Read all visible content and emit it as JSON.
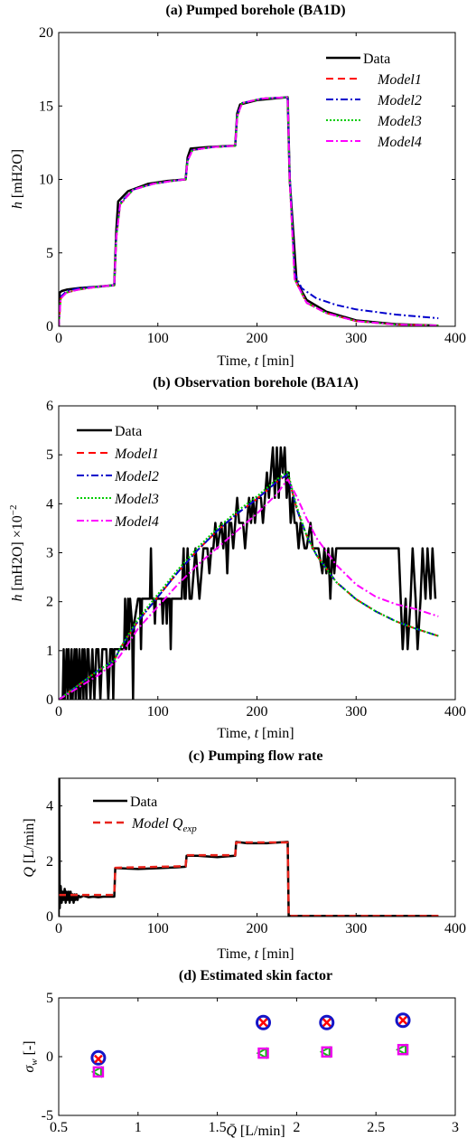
{
  "colors": {
    "data": "#000000",
    "model1": "#ff0000",
    "model2": "#0000cc",
    "model3": "#00cc00",
    "model4": "#ff00ff",
    "model_qexp": "#e8241c",
    "skin_circle": "#1515c8",
    "skin_cross": "#ff0000",
    "skin_triangle": "#11bb11",
    "skin_square": "#ee00ee"
  },
  "chart_data": [
    {
      "type": "line",
      "title": "(a) Pumped borehole (BA1D)",
      "xlabel": "Time, t [min]",
      "ylabel": "h [mH2O]",
      "xlim": [
        0,
        400
      ],
      "ylim": [
        0,
        20
      ],
      "xticks": [
        0,
        100,
        200,
        300,
        400
      ],
      "yticks": [
        0,
        5,
        10,
        15,
        20
      ],
      "legend": "top-right",
      "series": [
        {
          "name": "Data",
          "x": [
            0,
            1,
            3,
            8,
            20,
            40,
            56,
            58,
            60,
            70,
            90,
            110,
            128,
            130,
            133,
            150,
            178,
            180,
            183,
            200,
            231,
            233,
            240,
            250,
            270,
            300,
            340,
            383
          ],
          "y": [
            0,
            2.3,
            2.4,
            2.5,
            2.6,
            2.7,
            2.8,
            6.5,
            8.5,
            9.2,
            9.7,
            9.9,
            10.0,
            11.5,
            12.1,
            12.2,
            12.3,
            14.5,
            15.1,
            15.4,
            15.6,
            10.0,
            3.0,
            1.8,
            1.0,
            0.4,
            0.15,
            0.05
          ]
        },
        {
          "name": "Model1",
          "x": [
            0,
            2,
            8,
            20,
            40,
            56,
            58,
            62,
            75,
            95,
            115,
            128,
            130,
            135,
            155,
            178,
            180,
            185,
            205,
            231,
            233,
            238,
            250,
            270,
            300,
            340,
            383
          ],
          "y": [
            0,
            1.9,
            2.3,
            2.5,
            2.7,
            2.8,
            6.0,
            8.3,
            9.3,
            9.7,
            9.9,
            10.0,
            11.3,
            12.0,
            12.2,
            12.3,
            14.3,
            15.2,
            15.5,
            15.6,
            10.0,
            3.2,
            1.6,
            0.9,
            0.35,
            0.12,
            0.05
          ]
        },
        {
          "name": "Model2",
          "x": [
            0,
            2,
            8,
            20,
            40,
            56,
            58,
            62,
            75,
            95,
            115,
            128,
            130,
            135,
            155,
            178,
            180,
            185,
            205,
            231,
            233,
            238,
            245,
            260,
            280,
            300,
            340,
            383
          ],
          "y": [
            0,
            2.0,
            2.4,
            2.6,
            2.7,
            2.8,
            6.1,
            8.4,
            9.3,
            9.7,
            9.9,
            10.0,
            11.3,
            12.0,
            12.2,
            12.3,
            14.4,
            15.2,
            15.5,
            15.6,
            10.5,
            3.6,
            2.6,
            1.9,
            1.45,
            1.15,
            0.8,
            0.55
          ]
        },
        {
          "name": "Model3",
          "x": [
            0,
            2,
            8,
            20,
            40,
            56,
            58,
            62,
            75,
            95,
            115,
            128,
            130,
            135,
            155,
            178,
            180,
            185,
            205,
            231,
            233,
            238,
            250,
            270,
            300,
            340,
            383
          ],
          "y": [
            0,
            1.9,
            2.3,
            2.5,
            2.7,
            2.8,
            6.0,
            8.3,
            9.3,
            9.7,
            9.9,
            10.0,
            11.3,
            12.0,
            12.2,
            12.3,
            14.3,
            15.2,
            15.5,
            15.6,
            10.0,
            3.2,
            1.6,
            0.9,
            0.35,
            0.12,
            0.05
          ]
        },
        {
          "name": "Model4",
          "x": [
            0,
            2,
            8,
            20,
            40,
            56,
            58,
            62,
            75,
            95,
            115,
            128,
            130,
            135,
            155,
            178,
            180,
            185,
            205,
            231,
            233,
            238,
            250,
            270,
            300,
            340,
            383
          ],
          "y": [
            0,
            1.9,
            2.3,
            2.5,
            2.7,
            2.8,
            6.0,
            8.3,
            9.3,
            9.7,
            9.9,
            10.0,
            11.3,
            12.0,
            12.2,
            12.3,
            14.3,
            15.2,
            15.5,
            15.6,
            10.0,
            3.2,
            1.6,
            0.9,
            0.35,
            0.12,
            0.05
          ]
        }
      ]
    },
    {
      "type": "line",
      "title": "(b) Observation borehole (BA1A)",
      "xlabel": "Time, t [min]",
      "ylabel": "h [mH2O] ×10^-2",
      "xlim": [
        0,
        400
      ],
      "ylim": [
        0,
        6
      ],
      "xticks": [
        0,
        100,
        200,
        300,
        400
      ],
      "yticks": [
        0,
        1,
        2,
        3,
        4,
        5,
        6
      ],
      "legend": "top-left",
      "series": [
        {
          "name": "Data",
          "x": [
            0,
            4,
            5,
            6,
            8,
            9,
            10,
            12,
            13,
            14,
            16,
            17,
            18,
            20,
            21,
            22,
            24,
            25,
            26,
            28,
            29,
            30,
            32,
            34,
            36,
            38,
            40,
            42,
            44,
            46,
            48,
            50,
            52,
            54,
            55,
            56,
            60,
            66,
            67,
            68,
            70,
            71,
            72,
            74,
            75,
            76,
            80,
            82,
            83,
            84,
            88,
            92,
            93,
            94,
            96,
            97,
            98,
            100,
            104,
            105,
            106,
            108,
            109,
            110,
            112,
            113,
            114,
            116,
            118,
            120,
            124,
            126,
            127,
            128,
            130,
            132,
            134,
            138,
            140,
            142,
            146,
            148,
            150,
            152,
            154,
            156,
            158,
            160,
            164,
            166,
            168,
            170,
            172,
            174,
            176,
            178,
            180,
            182,
            186,
            188,
            190,
            192,
            194,
            196,
            198,
            200,
            204,
            206,
            208,
            210,
            212,
            214,
            216,
            218,
            220,
            222,
            224,
            226,
            228,
            230,
            232,
            234,
            236,
            238,
            240,
            242,
            244,
            248,
            250,
            254,
            256,
            258,
            262,
            266,
            268,
            270,
            272,
            274,
            276,
            278,
            280,
            282,
            286,
            290,
            300,
            310,
            320,
            330,
            340,
            343,
            345,
            347,
            350,
            352,
            355,
            357,
            360,
            362,
            365,
            367,
            370,
            372,
            375,
            377,
            380
          ],
          "y": [
            0,
            0,
            1.03,
            0,
            1.03,
            0,
            1.03,
            0,
            1.03,
            0,
            1.03,
            0,
            1.03,
            0,
            1.03,
            0,
            1.03,
            0,
            1.03,
            0,
            1.03,
            1.03,
            0,
            1.03,
            0,
            1.03,
            1.03,
            0,
            1.03,
            1.03,
            1.03,
            0,
            1.03,
            1.03,
            0,
            1.03,
            1.03,
            1.03,
            2.06,
            1.03,
            2.06,
            1.03,
            2.06,
            1.55,
            0,
            1.55,
            2.06,
            2.06,
            1.03,
            2.06,
            2.06,
            2.06,
            3.09,
            2.06,
            2.06,
            1.55,
            2.06,
            2.06,
            2.06,
            1.55,
            2.06,
            2.06,
            1.55,
            2.06,
            2.06,
            1.03,
            2.06,
            2.06,
            2.06,
            2.06,
            2.06,
            3.09,
            2.06,
            2.06,
            3.09,
            2.06,
            2.06,
            3.09,
            2.58,
            2.06,
            3.09,
            3.09,
            3.09,
            2.58,
            3.09,
            3.09,
            3.61,
            3.09,
            3.61,
            3.09,
            3.61,
            2.58,
            3.61,
            3.61,
            3.09,
            3.61,
            4.12,
            3.61,
            3.61,
            3.09,
            3.61,
            4.12,
            3.61,
            4.12,
            3.61,
            4.12,
            4.12,
            3.61,
            4.12,
            4.64,
            4.12,
            4.64,
            5.15,
            4.12,
            5.15,
            4.12,
            5.15,
            4.64,
            5.15,
            4.12,
            4.64,
            3.61,
            4.12,
            3.61,
            3.61,
            3.09,
            3.61,
            3.09,
            3.09,
            3.61,
            3.09,
            3.09,
            3.09,
            2.58,
            3.09,
            2.58,
            3.09,
            2.06,
            3.09,
            2.58,
            3.09,
            3.09,
            3.09,
            3.09,
            3.09,
            3.09,
            3.09,
            3.09,
            3.09,
            3.09,
            2.06,
            1.03,
            2.06,
            1.03,
            2.06,
            3.09,
            2.06,
            1.03,
            2.06,
            3.09,
            2.06,
            3.09,
            2.06,
            3.09,
            2.06
          ]
        },
        {
          "name": "Model1",
          "x": [
            0,
            20,
            40,
            56,
            62,
            80,
            100,
            120,
            140,
            160,
            180,
            200,
            220,
            231,
            240,
            250,
            260,
            280,
            300,
            320,
            340,
            360,
            383
          ],
          "y": [
            0,
            0.3,
            0.6,
            0.8,
            1.05,
            1.6,
            2.1,
            2.6,
            3.05,
            3.45,
            3.8,
            4.1,
            4.45,
            4.6,
            3.9,
            3.35,
            2.95,
            2.4,
            2.05,
            1.8,
            1.6,
            1.45,
            1.3
          ]
        },
        {
          "name": "Model2",
          "x": [
            0,
            20,
            40,
            56,
            62,
            80,
            100,
            120,
            140,
            160,
            180,
            200,
            220,
            231,
            240,
            250,
            260,
            280,
            300,
            320,
            340,
            360,
            383
          ],
          "y": [
            0,
            0.3,
            0.6,
            0.8,
            1.05,
            1.6,
            2.1,
            2.6,
            3.05,
            3.45,
            3.8,
            4.1,
            4.45,
            4.6,
            3.9,
            3.35,
            2.95,
            2.4,
            2.05,
            1.8,
            1.6,
            1.45,
            1.3
          ]
        },
        {
          "name": "Model3",
          "x": [
            0,
            20,
            40,
            56,
            62,
            80,
            100,
            120,
            140,
            160,
            180,
            200,
            220,
            231,
            240,
            250,
            260,
            280,
            300,
            320,
            340,
            360,
            383
          ],
          "y": [
            0,
            0.3,
            0.6,
            0.8,
            1.05,
            1.65,
            2.15,
            2.65,
            3.1,
            3.5,
            3.85,
            4.15,
            4.5,
            4.65,
            3.95,
            3.35,
            2.95,
            2.4,
            2.05,
            1.8,
            1.6,
            1.45,
            1.3
          ]
        },
        {
          "name": "Model4",
          "x": [
            0,
            20,
            40,
            56,
            62,
            80,
            100,
            120,
            140,
            160,
            180,
            200,
            220,
            231,
            240,
            250,
            260,
            280,
            300,
            320,
            340,
            360,
            383
          ],
          "y": [
            0,
            0.25,
            0.5,
            0.75,
            0.9,
            1.45,
            1.9,
            2.35,
            2.75,
            3.1,
            3.45,
            3.8,
            4.2,
            4.5,
            4.15,
            3.7,
            3.3,
            2.75,
            2.35,
            2.1,
            1.95,
            1.85,
            1.7
          ]
        }
      ]
    },
    {
      "type": "line",
      "title": "(c) Pumping flow rate",
      "xlabel": "Time, t [min]",
      "ylabel": "Q [L/min]",
      "xlim": [
        0,
        400
      ],
      "ylim": [
        0,
        5
      ],
      "xticks": [
        0,
        100,
        200,
        300,
        400
      ],
      "yticks": [
        0,
        2,
        4
      ],
      "legend": "top-left",
      "series": [
        {
          "name": "Data",
          "x": [
            0,
            0.5,
            1,
            2,
            3,
            4,
            5,
            6,
            7,
            8,
            9,
            10,
            11,
            12,
            13,
            14,
            15,
            16,
            17,
            18,
            19,
            20,
            22,
            25,
            30,
            35,
            40,
            45,
            50,
            56,
            57,
            60,
            80,
            100,
            120,
            128,
            129,
            140,
            160,
            178,
            179,
            190,
            210,
            231,
            232,
            260,
            300,
            340,
            383
          ],
          "y": [
            0,
            5.0,
            0.3,
            1.1,
            0.5,
            0.9,
            0.6,
            1.0,
            0.5,
            0.9,
            0.6,
            0.9,
            0.5,
            0.9,
            0.6,
            0.8,
            0.5,
            0.8,
            0.6,
            0.8,
            0.6,
            0.75,
            0.7,
            0.75,
            0.7,
            0.72,
            0.7,
            0.72,
            0.72,
            0.72,
            1.75,
            1.75,
            1.72,
            1.75,
            1.78,
            1.8,
            2.2,
            2.2,
            2.15,
            2.2,
            2.7,
            2.65,
            2.65,
            2.7,
            0.02,
            0.02,
            0.02,
            0.02,
            0.02
          ]
        },
        {
          "name": "Model Q_exp",
          "x": [
            0,
            2,
            56,
            57,
            128,
            129,
            178,
            179,
            231,
            232,
            383
          ],
          "y": [
            0.78,
            0.78,
            0.78,
            1.76,
            1.82,
            2.22,
            2.22,
            2.68,
            2.68,
            0.02,
            0.02
          ]
        }
      ]
    },
    {
      "type": "scatter",
      "title": "(d) Estimated skin factor",
      "xlabel": "Q̄ [L/min]",
      "ylabel": "σw [-]",
      "xlim": [
        0.5,
        3
      ],
      "ylim": [
        -5,
        5
      ],
      "xticks": [
        0.5,
        1,
        1.5,
        2,
        2.5,
        3
      ],
      "yticks": [
        -5,
        0,
        5
      ],
      "series": [
        {
          "marker": "circle",
          "x": [
            0.75,
            1.79,
            2.19,
            2.67
          ],
          "y": [
            -0.1,
            2.9,
            2.9,
            3.1
          ]
        },
        {
          "marker": "cross",
          "x": [
            0.75,
            1.79,
            2.19,
            2.67
          ],
          "y": [
            -0.2,
            2.9,
            2.9,
            3.1
          ]
        },
        {
          "marker": "triangle",
          "x": [
            0.75,
            1.79,
            2.19,
            2.67
          ],
          "y": [
            -1.3,
            0.3,
            0.4,
            0.6
          ]
        },
        {
          "marker": "square",
          "x": [
            0.75,
            1.79,
            2.19,
            2.67
          ],
          "y": [
            -1.3,
            0.3,
            0.4,
            0.6
          ]
        }
      ]
    }
  ]
}
